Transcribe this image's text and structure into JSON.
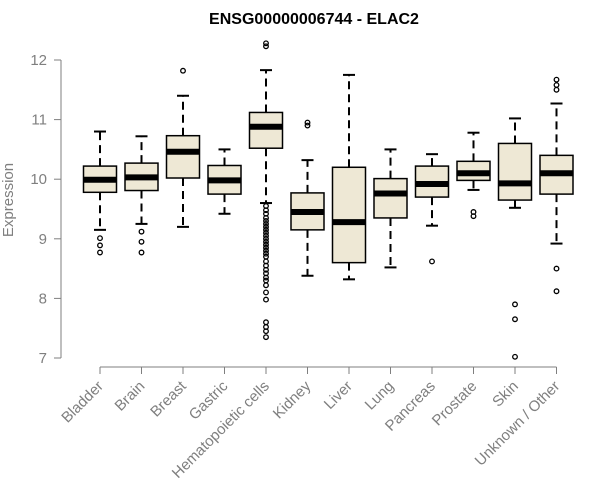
{
  "chart_data": {
    "type": "boxplot",
    "title": "ENSG00000006744 - ELAC2",
    "xlabel": "",
    "ylabel": "Expression",
    "ylim": [
      7,
      12.2
    ],
    "yticks": [
      "7",
      "8",
      "9",
      "10",
      "11",
      "12"
    ],
    "categories": [
      "Bladder",
      "Brain",
      "Breast",
      "Gastric",
      "Hematopoietic cells",
      "Kidney",
      "Liver",
      "Lung",
      "Pancreas",
      "Prostate",
      "Skin",
      "Unknown / Other"
    ],
    "boxes": [
      {
        "whisker_low": 9.15,
        "q1": 9.78,
        "median": 9.99,
        "q3": 10.22,
        "whisker_high": 10.8,
        "outliers": [
          8.77,
          8.89,
          9.01
        ]
      },
      {
        "whisker_low": 9.25,
        "q1": 9.81,
        "median": 10.03,
        "q3": 10.27,
        "whisker_high": 10.72,
        "outliers": [
          8.77,
          8.95,
          9.12
        ]
      },
      {
        "whisker_low": 9.2,
        "q1": 10.02,
        "median": 10.46,
        "q3": 10.73,
        "whisker_high": 11.4,
        "outliers": [
          11.82
        ]
      },
      {
        "whisker_low": 9.42,
        "q1": 9.75,
        "median": 9.98,
        "q3": 10.23,
        "whisker_high": 10.5,
        "outliers": []
      },
      {
        "whisker_low": 9.6,
        "q1": 10.52,
        "median": 10.88,
        "q3": 11.12,
        "whisker_high": 11.83,
        "outliers": [
          12.23,
          12.28,
          9.55,
          9.48,
          9.42,
          9.35,
          9.3,
          9.25,
          9.2,
          9.15,
          9.1,
          9.05,
          9.0,
          8.95,
          8.9,
          8.85,
          8.8,
          8.75,
          8.7,
          8.62,
          8.55,
          8.48,
          8.42,
          8.35,
          8.3,
          8.22,
          8.1,
          7.98,
          7.6,
          7.52,
          7.45,
          7.35
        ]
      },
      {
        "whisker_low": 8.38,
        "q1": 9.15,
        "median": 9.45,
        "q3": 9.77,
        "whisker_high": 10.32,
        "outliers": [
          10.9,
          10.95
        ]
      },
      {
        "whisker_low": 8.32,
        "q1": 8.6,
        "median": 9.28,
        "q3": 10.2,
        "whisker_high": 11.75,
        "outliers": []
      },
      {
        "whisker_low": 8.52,
        "q1": 9.35,
        "median": 9.76,
        "q3": 10.01,
        "whisker_high": 10.5,
        "outliers": []
      },
      {
        "whisker_low": 9.22,
        "q1": 9.7,
        "median": 9.92,
        "q3": 10.22,
        "whisker_high": 10.42,
        "outliers": [
          8.62
        ]
      },
      {
        "whisker_low": 9.82,
        "q1": 9.98,
        "median": 10.1,
        "q3": 10.3,
        "whisker_high": 10.78,
        "outliers": [
          9.38,
          9.45
        ]
      },
      {
        "whisker_low": 9.52,
        "q1": 9.65,
        "median": 9.93,
        "q3": 10.6,
        "whisker_high": 11.02,
        "outliers": [
          7.02,
          7.65,
          7.9
        ]
      },
      {
        "whisker_low": 8.92,
        "q1": 9.75,
        "median": 10.1,
        "q3": 10.4,
        "whisker_high": 11.27,
        "outliers": [
          11.5,
          11.58,
          11.67,
          8.5,
          8.12
        ]
      }
    ]
  },
  "colors": {
    "box_fill": "#eee8d5",
    "box_stroke": "#000000",
    "axis": "#7f7f7f",
    "text": "#7f7f7f",
    "title": "#000000"
  }
}
